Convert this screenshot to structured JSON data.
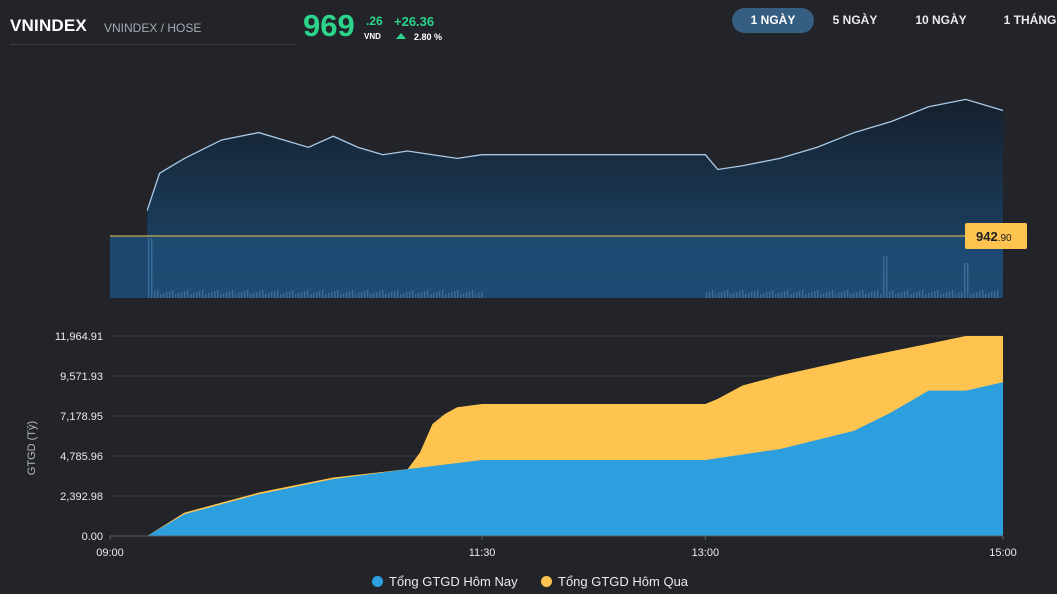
{
  "header": {
    "ticker": "VNINDEX",
    "exchange": "VNINDEX / HOSE",
    "price_int": "969",
    "price_dec": ".26",
    "unit": "VND",
    "change": "+26.36",
    "change_pct": "2.80 %",
    "colors": {
      "up": "#2bd48a"
    }
  },
  "range_tabs": [
    {
      "label": "1 NGÀY",
      "active": true
    },
    {
      "label": "5 NGÀY",
      "active": false
    },
    {
      "label": "10 NGÀY",
      "active": false
    },
    {
      "label": "1 THÁNG",
      "active": false
    }
  ],
  "reference_label": {
    "int": "942",
    "dec": ".90"
  },
  "chart_data": [
    {
      "type": "line",
      "reference": 942.9,
      "x": [
        "09:15",
        "09:20",
        "09:30",
        "09:45",
        "10:00",
        "10:10",
        "10:20",
        "10:30",
        "10:40",
        "10:50",
        "11:00",
        "11:10",
        "11:20",
        "11:30",
        "11:45",
        "12:00",
        "12:30",
        "13:00",
        "13:05",
        "13:15",
        "13:30",
        "13:45",
        "14:00",
        "14:15",
        "14:30",
        "14:45",
        "15:00"
      ],
      "values": [
        942.9,
        953,
        957,
        962,
        964,
        962,
        960,
        963,
        960,
        958,
        959,
        958,
        957,
        958,
        958,
        958,
        958,
        958,
        954,
        955,
        957,
        960,
        964,
        967,
        971,
        973,
        970
      ],
      "volume_bars": true
    },
    {
      "type": "area",
      "xlabel": "",
      "ylabel": "GTGD (Tỷ)",
      "x_ticks": [
        "09:00",
        "11:30",
        "13:00",
        "15:00"
      ],
      "y_ticks": [
        "0.00",
        "2,392.98",
        "4,785.96",
        "7,178.95",
        "9,571.93",
        "11,964.91"
      ],
      "ylim": [
        0,
        11964.91
      ],
      "colors": {
        "today": "#2d9fdf",
        "yesterday": "#fec44f"
      },
      "series": [
        {
          "name": "Tổng GTGD Hôm Qua",
          "x": [
            "09:00",
            "09:15",
            "09:30",
            "10:00",
            "10:30",
            "11:00",
            "11:05",
            "11:10",
            "11:15",
            "11:20",
            "11:30",
            "12:00",
            "13:00",
            "13:05",
            "13:15",
            "13:30",
            "14:00",
            "14:30",
            "14:45",
            "15:00"
          ],
          "values": [
            0,
            0,
            1400,
            2600,
            3500,
            4000,
            5000,
            6700,
            7300,
            7700,
            7900,
            7900,
            7900,
            8200,
            9000,
            9600,
            10600,
            11500,
            11965,
            11965
          ]
        },
        {
          "name": "Tổng GTGD Hôm Nay",
          "x": [
            "09:00",
            "09:15",
            "09:30",
            "10:00",
            "10:30",
            "11:00",
            "11:30",
            "12:00",
            "13:00",
            "13:30",
            "14:00",
            "14:15",
            "14:30",
            "14:45",
            "15:00"
          ],
          "values": [
            0,
            0,
            1300,
            2500,
            3400,
            4000,
            4550,
            4550,
            4550,
            5200,
            6300,
            7400,
            8700,
            8700,
            9200
          ]
        }
      ],
      "legend": [
        "Tổng GTGD Hôm Nay",
        "Tổng GTGD Hôm Qua"
      ],
      "legend_position": "bottom"
    }
  ]
}
